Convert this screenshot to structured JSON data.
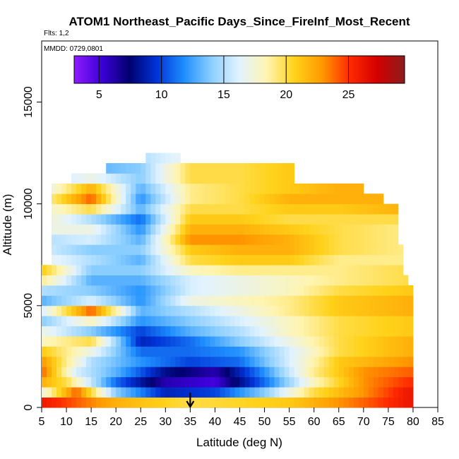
{
  "chart_data": {
    "type": "heatmap",
    "title": "ATOM1 Northeast_Pacific Days_Since_FireInf_Most_Recent",
    "flights_note": "Flts: 1,2",
    "dates_note": "MMDD: 0729,0801",
    "xlabel": "Latitude (deg N)",
    "ylabel": "Altitude (m)",
    "xlim": [
      5,
      85
    ],
    "ylim": [
      0,
      18000
    ],
    "xticks": [
      "5",
      "10",
      "15",
      "20",
      "25",
      "30",
      "35",
      "40",
      "45",
      "50",
      "55",
      "60",
      "65",
      "70",
      "75",
      "80",
      "85"
    ],
    "yticks": [
      "0",
      "5000",
      "10000",
      "15000"
    ],
    "colorbar": {
      "min": 3,
      "max": 29.5,
      "ticks": [
        "5",
        "10",
        "15",
        "20",
        "25"
      ],
      "stops": [
        "#8f1cff",
        "#3c00d8",
        "#00006e",
        "#0033d6",
        "#1f8fff",
        "#8ccfff",
        "#e2f3ff",
        "#fff4b0",
        "#ffd21a",
        "#ff9a00",
        "#ff2a00",
        "#d40000",
        "#8c1c1c"
      ]
    },
    "marker": {
      "latitude": 35,
      "label": "arrow"
    },
    "columns": [
      {
        "lat": 5.5,
        "top": 7000
      },
      {
        "lat": 6.5,
        "top": 7000
      },
      {
        "lat": 7.5,
        "top": 11000
      },
      {
        "lat": 8.5,
        "top": 11000
      },
      {
        "lat": 9.5,
        "top": 11000
      },
      {
        "lat": 10.5,
        "top": 11000
      },
      {
        "lat": 11.5,
        "top": 11500
      },
      {
        "lat": 12.5,
        "top": 11500
      },
      {
        "lat": 13.5,
        "top": 11500
      },
      {
        "lat": 14.5,
        "top": 11500
      },
      {
        "lat": 15.5,
        "top": 11500
      },
      {
        "lat": 16.5,
        "top": 11500
      },
      {
        "lat": 17.5,
        "top": 11500
      },
      {
        "lat": 18.5,
        "top": 12000
      },
      {
        "lat": 19.5,
        "top": 12000
      },
      {
        "lat": 20.5,
        "top": 12000
      },
      {
        "lat": 21.5,
        "top": 12000
      },
      {
        "lat": 22.5,
        "top": 12000
      },
      {
        "lat": 23.5,
        "top": 12000
      },
      {
        "lat": 24.5,
        "top": 12000
      },
      {
        "lat": 25.5,
        "top": 12000
      },
      {
        "lat": 26.5,
        "top": 12500
      },
      {
        "lat": 27.5,
        "top": 12500
      },
      {
        "lat": 28.5,
        "top": 12500
      },
      {
        "lat": 29.5,
        "top": 12500
      },
      {
        "lat": 30.5,
        "top": 12500
      },
      {
        "lat": 31.5,
        "top": 12500
      },
      {
        "lat": 32.5,
        "top": 12500
      },
      {
        "lat": 33.5,
        "top": 12000
      },
      {
        "lat": 34.5,
        "top": 12000
      },
      {
        "lat": 35.5,
        "top": 12000
      },
      {
        "lat": 36.5,
        "top": 12000
      },
      {
        "lat": 37.5,
        "top": 12000
      },
      {
        "lat": 38.5,
        "top": 12000
      },
      {
        "lat": 39.5,
        "top": 12000
      },
      {
        "lat": 40.5,
        "top": 12000
      },
      {
        "lat": 41.5,
        "top": 12000
      },
      {
        "lat": 42.5,
        "top": 12000
      },
      {
        "lat": 43.5,
        "top": 12000
      },
      {
        "lat": 44.5,
        "top": 12000
      },
      {
        "lat": 45.5,
        "top": 12000
      },
      {
        "lat": 46.5,
        "top": 12000
      },
      {
        "lat": 47.5,
        "top": 12000
      },
      {
        "lat": 48.5,
        "top": 12000
      },
      {
        "lat": 49.5,
        "top": 12000
      },
      {
        "lat": 50.5,
        "top": 12000
      },
      {
        "lat": 51.5,
        "top": 12000
      },
      {
        "lat": 52.5,
        "top": 12000
      },
      {
        "lat": 53.5,
        "top": 12000
      },
      {
        "lat": 54.5,
        "top": 12000
      },
      {
        "lat": 55.5,
        "top": 12000
      },
      {
        "lat": 56.5,
        "top": 11000
      },
      {
        "lat": 57.5,
        "top": 11000
      },
      {
        "lat": 58.5,
        "top": 11000
      },
      {
        "lat": 59.5,
        "top": 11000
      },
      {
        "lat": 60.5,
        "top": 11000
      },
      {
        "lat": 61.5,
        "top": 11000
      },
      {
        "lat": 62.5,
        "top": 11000
      },
      {
        "lat": 63.5,
        "top": 11000
      },
      {
        "lat": 64.5,
        "top": 11000
      },
      {
        "lat": 65.5,
        "top": 11000
      },
      {
        "lat": 66.5,
        "top": 11000
      },
      {
        "lat": 67.5,
        "top": 11000
      },
      {
        "lat": 68.5,
        "top": 11000
      },
      {
        "lat": 69.5,
        "top": 11000
      },
      {
        "lat": 70.5,
        "top": 10500
      },
      {
        "lat": 71.5,
        "top": 10500
      },
      {
        "lat": 72.5,
        "top": 10500
      },
      {
        "lat": 73.5,
        "top": 10500
      },
      {
        "lat": 74.5,
        "top": 10000
      },
      {
        "lat": 75.5,
        "top": 10000
      },
      {
        "lat": 76.5,
        "top": 10000
      },
      {
        "lat": 77.5,
        "top": 8000
      },
      {
        "lat": 78.5,
        "top": 6500
      },
      {
        "lat": 79.5,
        "top": 6000
      }
    ],
    "bands": [
      {
        "y0": 0,
        "y1": 500,
        "latitude_values": [
          [
            5,
            26
          ],
          [
            20,
            22
          ],
          [
            35,
            20
          ],
          [
            55,
            21
          ],
          [
            70,
            24
          ],
          [
            79,
            26
          ]
        ]
      },
      {
        "y0": 500,
        "y1": 1000,
        "latitude_values": [
          [
            5,
            17
          ],
          [
            12,
            24
          ],
          [
            20,
            14
          ],
          [
            30,
            9
          ],
          [
            40,
            10
          ],
          [
            50,
            14
          ],
          [
            60,
            20
          ],
          [
            70,
            23
          ],
          [
            79,
            26
          ]
        ]
      },
      {
        "y0": 1000,
        "y1": 1500,
        "latitude_values": [
          [
            5,
            22
          ],
          [
            10,
            20
          ],
          [
            20,
            11
          ],
          [
            30,
            6
          ],
          [
            40,
            5
          ],
          [
            50,
            11
          ],
          [
            60,
            18
          ],
          [
            70,
            23
          ],
          [
            79,
            25
          ]
        ]
      },
      {
        "y0": 1500,
        "y1": 2000,
        "latitude_values": [
          [
            5,
            24
          ],
          [
            12,
            16
          ],
          [
            20,
            13
          ],
          [
            30,
            8
          ],
          [
            40,
            6
          ],
          [
            50,
            12
          ],
          [
            60,
            19
          ],
          [
            70,
            23
          ],
          [
            79,
            24
          ]
        ]
      },
      {
        "y0": 2000,
        "y1": 2500,
        "latitude_values": [
          [
            5,
            23
          ],
          [
            15,
            15
          ],
          [
            25,
            12
          ],
          [
            35,
            10
          ],
          [
            45,
            11
          ],
          [
            55,
            16
          ],
          [
            65,
            21
          ],
          [
            79,
            23
          ]
        ]
      },
      {
        "y0": 2500,
        "y1": 3000,
        "latitude_values": [
          [
            5,
            21
          ],
          [
            15,
            17
          ],
          [
            25,
            11
          ],
          [
            35,
            11
          ],
          [
            45,
            12
          ],
          [
            55,
            16
          ],
          [
            65,
            20
          ],
          [
            79,
            22
          ]
        ]
      },
      {
        "y0": 3000,
        "y1": 3500,
        "latitude_values": [
          [
            5,
            18
          ],
          [
            15,
            20
          ],
          [
            25,
            9
          ],
          [
            35,
            11
          ],
          [
            45,
            14
          ],
          [
            55,
            17
          ],
          [
            65,
            20
          ],
          [
            79,
            22
          ]
        ]
      },
      {
        "y0": 3500,
        "y1": 4000,
        "latitude_values": [
          [
            5,
            17
          ],
          [
            15,
            14
          ],
          [
            25,
            10
          ],
          [
            35,
            13
          ],
          [
            45,
            15
          ],
          [
            55,
            18
          ],
          [
            65,
            20
          ],
          [
            79,
            21
          ]
        ]
      },
      {
        "y0": 4000,
        "y1": 4500,
        "latitude_values": [
          [
            5,
            14
          ],
          [
            15,
            18
          ],
          [
            25,
            12
          ],
          [
            35,
            14
          ],
          [
            45,
            16
          ],
          [
            55,
            18
          ],
          [
            65,
            20
          ],
          [
            79,
            21
          ]
        ]
      },
      {
        "y0": 4500,
        "y1": 5000,
        "latitude_values": [
          [
            5,
            16
          ],
          [
            15,
            24
          ],
          [
            25,
            13
          ],
          [
            35,
            15
          ],
          [
            45,
            17
          ],
          [
            55,
            19
          ],
          [
            65,
            21
          ],
          [
            79,
            22
          ]
        ]
      },
      {
        "y0": 5000,
        "y1": 5500,
        "latitude_values": [
          [
            5,
            13
          ],
          [
            15,
            16
          ],
          [
            25,
            12
          ],
          [
            35,
            17
          ],
          [
            45,
            18
          ],
          [
            55,
            19
          ],
          [
            65,
            21
          ],
          [
            79,
            22
          ]
        ]
      },
      {
        "y0": 5500,
        "y1": 6000,
        "latitude_values": [
          [
            5,
            15
          ],
          [
            15,
            14
          ],
          [
            25,
            12
          ],
          [
            35,
            16
          ],
          [
            45,
            17
          ],
          [
            55,
            18
          ],
          [
            65,
            20
          ],
          [
            79,
            21
          ]
        ]
      },
      {
        "y0": 6000,
        "y1": 6500,
        "latitude_values": [
          [
            5,
            19
          ],
          [
            15,
            13
          ],
          [
            25,
            13
          ],
          [
            35,
            16
          ],
          [
            45,
            17
          ],
          [
            55,
            18
          ],
          [
            65,
            19
          ],
          [
            79,
            20
          ]
        ]
      },
      {
        "y0": 6500,
        "y1": 7000,
        "latitude_values": [
          [
            5,
            21
          ],
          [
            15,
            14
          ],
          [
            25,
            14
          ],
          [
            35,
            18
          ],
          [
            45,
            19
          ],
          [
            55,
            19
          ],
          [
            65,
            19
          ],
          [
            79,
            20
          ]
        ]
      },
      {
        "y0": 7000,
        "y1": 7500,
        "latitude_values": [
          [
            5,
            17
          ],
          [
            15,
            15
          ],
          [
            25,
            13
          ],
          [
            35,
            20
          ],
          [
            45,
            21
          ],
          [
            55,
            21
          ],
          [
            65,
            19
          ],
          [
            79,
            19
          ]
        ]
      },
      {
        "y0": 7500,
        "y1": 8000,
        "latitude_values": [
          [
            5,
            16
          ],
          [
            15,
            14
          ],
          [
            25,
            14
          ],
          [
            35,
            21
          ],
          [
            45,
            22
          ],
          [
            55,
            22
          ],
          [
            65,
            20
          ],
          [
            79,
            19
          ]
        ]
      },
      {
        "y0": 8000,
        "y1": 8500,
        "latitude_values": [
          [
            5,
            15
          ],
          [
            15,
            16
          ],
          [
            25,
            13
          ],
          [
            35,
            23
          ],
          [
            45,
            23
          ],
          [
            55,
            22
          ],
          [
            65,
            20
          ],
          [
            79,
            19
          ]
        ]
      },
      {
        "y0": 8500,
        "y1": 9000,
        "latitude_values": [
          [
            5,
            17
          ],
          [
            15,
            17
          ],
          [
            25,
            12
          ],
          [
            35,
            22
          ],
          [
            45,
            22
          ],
          [
            55,
            21
          ],
          [
            65,
            20
          ],
          [
            79,
            19
          ]
        ]
      },
      {
        "y0": 9000,
        "y1": 9500,
        "latitude_values": [
          [
            5,
            18
          ],
          [
            15,
            15
          ],
          [
            25,
            11
          ],
          [
            35,
            21
          ],
          [
            45,
            21
          ],
          [
            55,
            20
          ],
          [
            65,
            20
          ],
          [
            79,
            20
          ]
        ]
      },
      {
        "y0": 9500,
        "y1": 10000,
        "latitude_values": [
          [
            5,
            17
          ],
          [
            15,
            20
          ],
          [
            25,
            13
          ],
          [
            35,
            20
          ],
          [
            45,
            20
          ],
          [
            55,
            21
          ],
          [
            65,
            21
          ],
          [
            79,
            22
          ]
        ]
      },
      {
        "y0": 10000,
        "y1": 10500,
        "latitude_values": [
          [
            5,
            18
          ],
          [
            15,
            24
          ],
          [
            25,
            12
          ],
          [
            35,
            19
          ],
          [
            45,
            20
          ],
          [
            55,
            22
          ],
          [
            65,
            22
          ],
          [
            79,
            22
          ]
        ]
      },
      {
        "y0": 10500,
        "y1": 11000,
        "latitude_values": [
          [
            5,
            16
          ],
          [
            15,
            22
          ],
          [
            25,
            13
          ],
          [
            35,
            19
          ],
          [
            45,
            20
          ],
          [
            55,
            21
          ],
          [
            65,
            22
          ],
          [
            79,
            22
          ]
        ]
      },
      {
        "y0": 11000,
        "y1": 11500,
        "latitude_values": [
          [
            5,
            15
          ],
          [
            15,
            17
          ],
          [
            25,
            14
          ],
          [
            35,
            20
          ],
          [
            45,
            20
          ],
          [
            55,
            21
          ],
          [
            65,
            21
          ],
          [
            79,
            21
          ]
        ]
      },
      {
        "y0": 11500,
        "y1": 12000,
        "latitude_values": [
          [
            5,
            14
          ],
          [
            15,
            13
          ],
          [
            25,
            14
          ],
          [
            35,
            20
          ],
          [
            45,
            20
          ],
          [
            55,
            21
          ],
          [
            65,
            21
          ],
          [
            79,
            21
          ]
        ]
      },
      {
        "y0": 12000,
        "y1": 12500,
        "latitude_values": [
          [
            5,
            13
          ],
          [
            15,
            11
          ],
          [
            25,
            15
          ],
          [
            35,
            17
          ],
          [
            45,
            18
          ],
          [
            55,
            19
          ],
          [
            65,
            20
          ],
          [
            79,
            20
          ]
        ]
      },
      {
        "y0": 12500,
        "y1": 13000,
        "latitude_values": [
          [
            5,
            14
          ],
          [
            15,
            14
          ],
          [
            25,
            16
          ],
          [
            35,
            18
          ],
          [
            45,
            18
          ],
          [
            55,
            19
          ],
          [
            65,
            20
          ],
          [
            79,
            20
          ]
        ]
      }
    ]
  }
}
